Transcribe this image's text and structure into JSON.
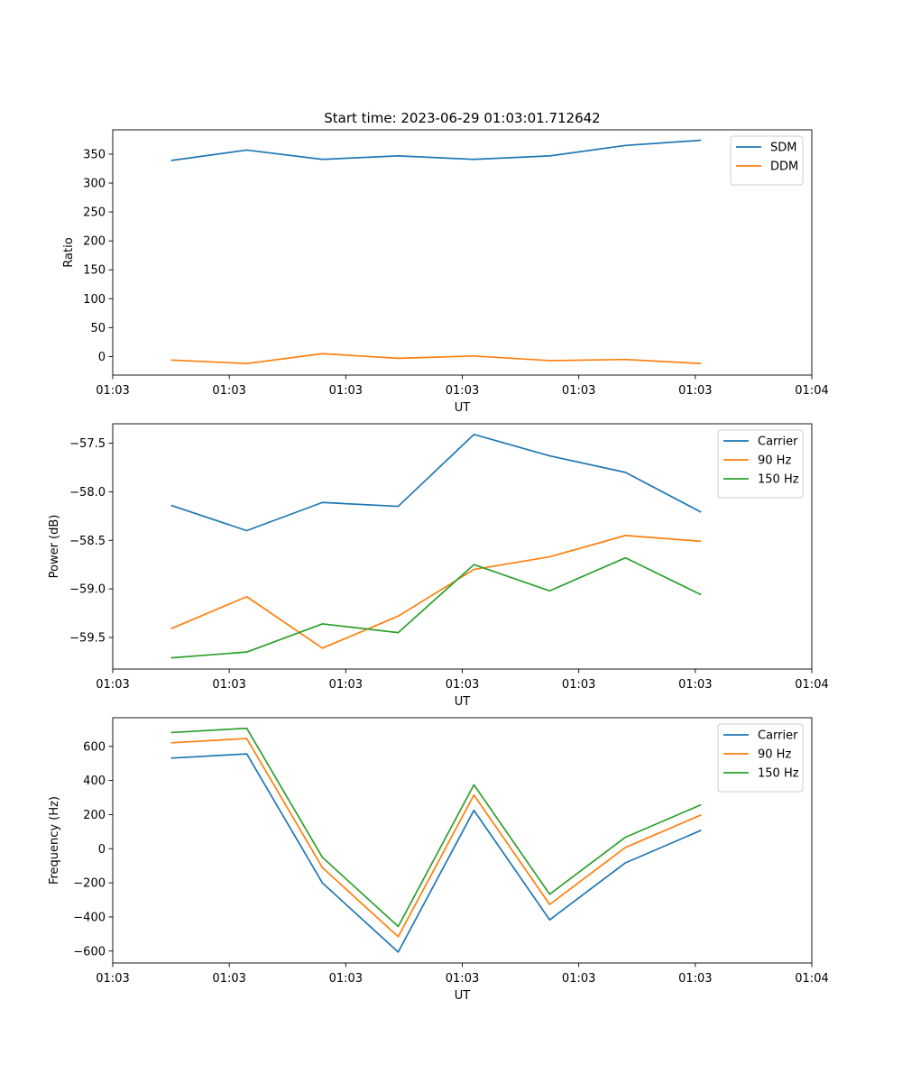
{
  "figure": {
    "title": "Start time: 2023-06-29 01:03:01.712642"
  },
  "chart_data": [
    {
      "type": "line",
      "xlabel": "UT",
      "ylabel": "Ratio",
      "xlim": [
        0,
        12
      ],
      "ylim": [
        -32,
        392
      ],
      "x_ticks": [
        0,
        2,
        4,
        6,
        8,
        10,
        12
      ],
      "x_tick_labels": [
        "01:03",
        "01:03",
        "01:03",
        "01:03",
        "01:03",
        "01:03",
        "01:04"
      ],
      "y_ticks": [
        0,
        50,
        100,
        150,
        200,
        250,
        300,
        350
      ],
      "y_tick_labels": [
        "0",
        "50",
        "100",
        "150",
        "200",
        "250",
        "300",
        "350"
      ],
      "x": [
        1,
        2.3,
        3.6,
        4.9,
        6.2,
        7.5,
        8.8,
        10.1
      ],
      "series": [
        {
          "name": "SDM",
          "color": "#1f77b4",
          "values": [
            339,
            357,
            341,
            347,
            341,
            347,
            365,
            374
          ]
        },
        {
          "name": "DDM",
          "color": "#ff7f0e",
          "values": [
            -6,
            -12,
            5,
            -3,
            1,
            -7,
            -5,
            -12
          ]
        }
      ],
      "legend": "top-right",
      "grid": false
    },
    {
      "type": "line",
      "xlabel": "UT",
      "ylabel": "Power (dB)",
      "xlim": [
        0,
        12
      ],
      "ylim": [
        -59.825,
        -57.3
      ],
      "x_ticks": [
        0,
        2,
        4,
        6,
        8,
        10,
        12
      ],
      "x_tick_labels": [
        "01:03",
        "01:03",
        "01:03",
        "01:03",
        "01:03",
        "01:03",
        "01:04"
      ],
      "y_ticks": [
        -59.5,
        -59.0,
        -58.5,
        -58.0,
        -57.5
      ],
      "y_tick_labels": [
        "−59.5",
        "−59.0",
        "−58.5",
        "−58.0",
        "−57.5"
      ],
      "x": [
        1,
        2.3,
        3.6,
        4.9,
        6.2,
        7.5,
        8.8,
        10.1
      ],
      "series": [
        {
          "name": "Carrier",
          "color": "#1f77b4",
          "values": [
            -58.14,
            -58.4,
            -58.11,
            -58.15,
            -57.41,
            -57.63,
            -57.8,
            -58.21
          ]
        },
        {
          "name": "90 Hz",
          "color": "#ff7f0e",
          "values": [
            -59.41,
            -59.08,
            -59.61,
            -59.28,
            -58.8,
            -58.67,
            -58.45,
            -58.51
          ]
        },
        {
          "name": "150 Hz",
          "color": "#2ca02c",
          "values": [
            -59.71,
            -59.65,
            -59.36,
            -59.45,
            -58.75,
            -59.02,
            -58.68,
            -59.06
          ]
        }
      ],
      "legend": "top-right",
      "grid": false
    },
    {
      "type": "line",
      "xlabel": "UT",
      "ylabel": "Frequency (Hz)",
      "xlim": [
        0,
        12
      ],
      "ylim": [
        -670,
        768
      ],
      "x_ticks": [
        0,
        2,
        4,
        6,
        8,
        10,
        12
      ],
      "x_tick_labels": [
        "01:03",
        "01:03",
        "01:03",
        "01:03",
        "01:03",
        "01:03",
        "01:04"
      ],
      "y_ticks": [
        -600,
        -400,
        -200,
        0,
        200,
        400,
        600
      ],
      "y_tick_labels": [
        "−600",
        "−400",
        "−200",
        "0",
        "200",
        "400",
        "600"
      ],
      "x": [
        1,
        2.3,
        3.6,
        4.9,
        6.2,
        7.5,
        8.8,
        10.1
      ],
      "series": [
        {
          "name": "Carrier",
          "color": "#1f77b4",
          "values": [
            531,
            556,
            -201,
            -606,
            225,
            -417,
            -83,
            108
          ]
        },
        {
          "name": "90 Hz",
          "color": "#ff7f0e",
          "values": [
            621,
            646,
            -111,
            -516,
            315,
            -327,
            7,
            198
          ]
        },
        {
          "name": "150 Hz",
          "color": "#2ca02c",
          "values": [
            681,
            706,
            -51,
            -456,
            375,
            -267,
            67,
            258
          ]
        }
      ],
      "legend": "top-right",
      "grid": false
    }
  ]
}
